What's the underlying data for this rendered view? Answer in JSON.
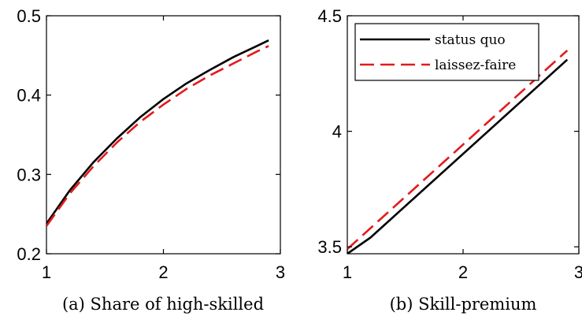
{
  "chart_data": [
    {
      "type": "line",
      "caption": "(a) Share of high-skilled",
      "xlim": [
        1,
        3
      ],
      "ylim": [
        0.2,
        0.5
      ],
      "xticks": [
        "1",
        "2",
        "3"
      ],
      "yticks": [
        "0.2",
        "0.3",
        "0.4",
        "0.5"
      ],
      "grid": false,
      "series": [
        {
          "key": "status_quo",
          "color": "#000000",
          "dash": "solid",
          "x": [
            1.0,
            1.2,
            1.4,
            1.6,
            1.8,
            2.0,
            2.2,
            2.4,
            2.6,
            2.8,
            2.9
          ],
          "y": [
            0.238,
            0.28,
            0.315,
            0.345,
            0.372,
            0.395,
            0.415,
            0.432,
            0.448,
            0.462,
            0.469
          ]
        },
        {
          "key": "laissez_faire",
          "color": "#e31a1c",
          "dash": "dashed",
          "x": [
            1.0,
            1.2,
            1.4,
            1.6,
            1.8,
            2.0,
            2.2,
            2.4,
            2.6,
            2.8,
            2.9
          ],
          "y": [
            0.235,
            0.276,
            0.31,
            0.34,
            0.366,
            0.388,
            0.408,
            0.425,
            0.44,
            0.455,
            0.462
          ]
        }
      ]
    },
    {
      "type": "line",
      "caption": "(b) Skill-premium",
      "xlim": [
        1,
        3
      ],
      "ylim": [
        3.47,
        4.5
      ],
      "xticks": [
        "1",
        "2",
        "3"
      ],
      "yticks": [
        "3.5",
        "4",
        "4.5"
      ],
      "grid": false,
      "legend_position": "top-right",
      "legend": [
        {
          "key": "status_quo",
          "label": "status quo"
        },
        {
          "key": "laissez_faire",
          "label": "laissez-faire"
        }
      ],
      "series": [
        {
          "key": "status_quo",
          "color": "#000000",
          "dash": "solid",
          "x": [
            1.0,
            1.2,
            2.9
          ],
          "y": [
            3.47,
            3.54,
            4.31
          ]
        },
        {
          "key": "laissez_faire",
          "color": "#e31a1c",
          "dash": "dashed",
          "x": [
            1.0,
            2.9
          ],
          "y": [
            3.49,
            4.35
          ]
        }
      ]
    }
  ]
}
